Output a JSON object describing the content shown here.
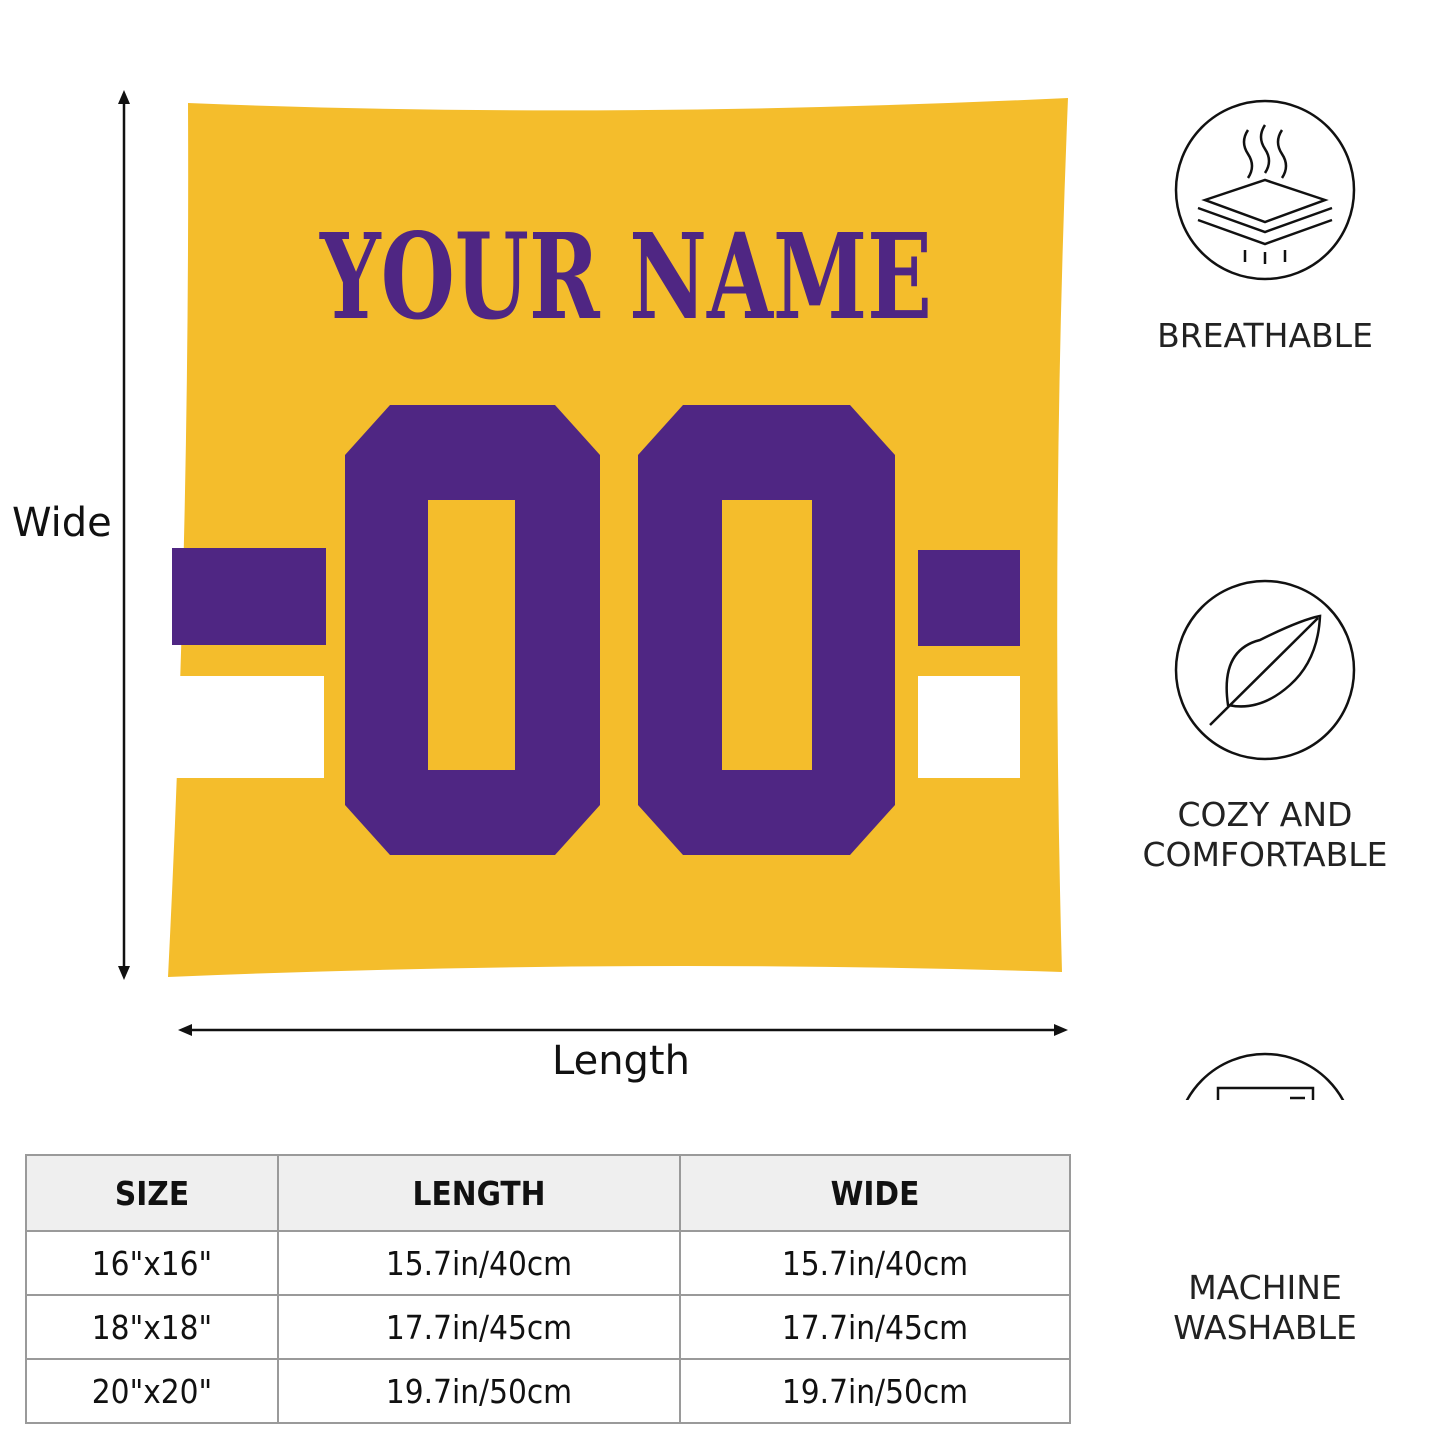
{
  "pillow": {
    "name_text": "YOUR NAME",
    "number_text": "00",
    "colors": {
      "body": "#F4BD2C",
      "accent": "#4F2683",
      "stripe_white": "#FFFFFF"
    }
  },
  "dimensions": {
    "height_label": "Wide",
    "width_label": "Length"
  },
  "features": [
    {
      "icon": "breathable-layers-icon",
      "label": "BREATHABLE"
    },
    {
      "icon": "feather-icon",
      "label": "COZY AND COMFORTABLE"
    },
    {
      "icon": "washing-machine-icon",
      "label": "MACHINE WASHABLE"
    }
  ],
  "size_table": {
    "headers": [
      "SIZE",
      "LENGTH",
      "WIDE"
    ],
    "rows": [
      [
        "16\"x16\"",
        "15.7in/40cm",
        "15.7in/40cm"
      ],
      [
        "18\"x18\"",
        "17.7in/45cm",
        "17.7in/45cm"
      ],
      [
        "20\"x20\"",
        "19.7in/50cm",
        "19.7in/50cm"
      ]
    ]
  }
}
